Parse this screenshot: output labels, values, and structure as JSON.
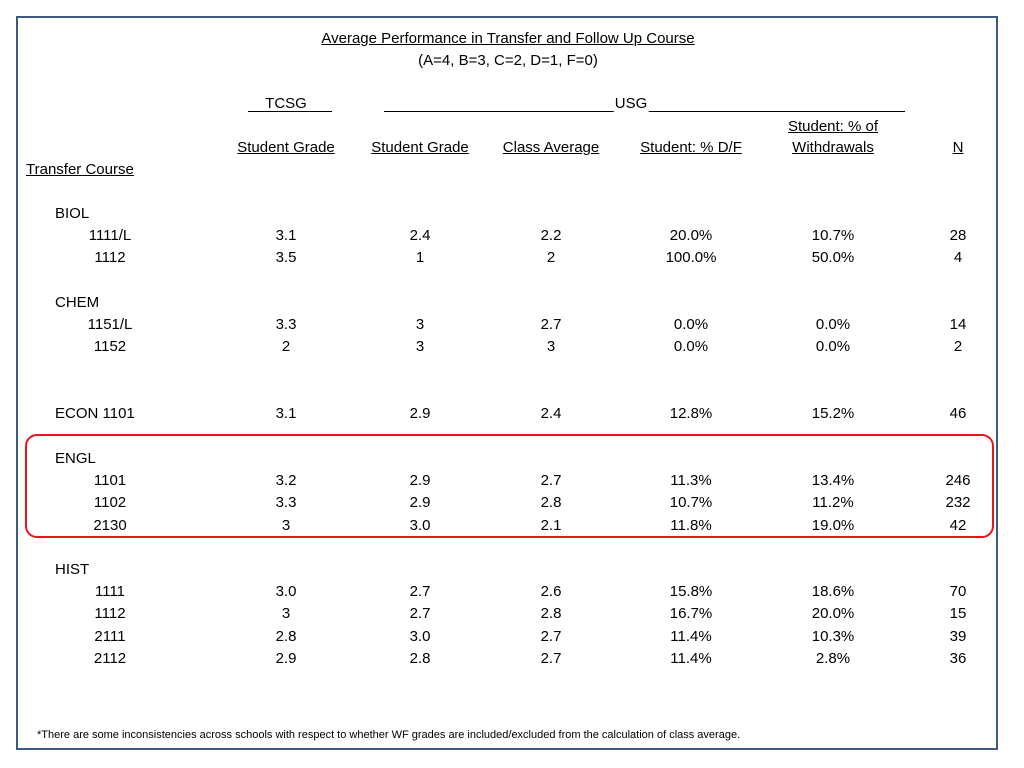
{
  "title": "Average Performance in Transfer and Follow Up Course",
  "subtitle": "(A=4, B=3, C=2, D=1, F=0)",
  "groups": {
    "tcsg": "TCSG",
    "usg": "USG"
  },
  "headers": {
    "tcsg_student_grade": "Student Grade",
    "usg_student_grade": "Student Grade",
    "class_average": "Class Average",
    "pct_df": "Student: % D/F",
    "pct_withdrawals_line1": "Student: % of",
    "pct_withdrawals_line2": "Withdrawals",
    "n": "N",
    "transfer_course": "Transfer Course"
  },
  "sections": [
    {
      "name": "BIOL",
      "rows": [
        {
          "course": "1111/L",
          "tcsg": "3.1",
          "usg": "2.4",
          "avg": "2.2",
          "df": "20.0%",
          "wd": "10.7%",
          "n": "28"
        },
        {
          "course": "1112",
          "tcsg": "3.5",
          "usg": "1",
          "avg": "2",
          "df": "100.0%",
          "wd": "50.0%",
          "n": "4"
        }
      ]
    },
    {
      "name": "CHEM",
      "rows": [
        {
          "course": "1151/L",
          "tcsg": "3.3",
          "usg": "3",
          "avg": "2.7",
          "df": "0.0%",
          "wd": "0.0%",
          "n": "14"
        },
        {
          "course": "1152",
          "tcsg": "2",
          "usg": "3",
          "avg": "3",
          "df": "0.0%",
          "wd": "0.0%",
          "n": "2"
        }
      ]
    },
    {
      "name": "",
      "rows": [
        {
          "course": "ECON 1101",
          "tcsg": "3.1",
          "usg": "2.9",
          "avg": "2.4",
          "df": "12.8%",
          "wd": "15.2%",
          "n": "46"
        }
      ]
    },
    {
      "name": "ENGL",
      "highlighted": true,
      "rows": [
        {
          "course": "1101",
          "tcsg": "3.2",
          "usg": "2.9",
          "avg": "2.7",
          "df": "11.3%",
          "wd": "13.4%",
          "n": "246"
        },
        {
          "course": "1102",
          "tcsg": "3.3",
          "usg": "2.9",
          "avg": "2.8",
          "df": "10.7%",
          "wd": "11.2%",
          "n": "232"
        },
        {
          "course": "2130",
          "tcsg": "3",
          "usg": "3.0",
          "avg": "2.1",
          "df": "11.8%",
          "wd": "19.0%",
          "n": "42"
        }
      ]
    },
    {
      "name": "HIST",
      "rows": [
        {
          "course": "1111",
          "tcsg": "3.0",
          "usg": "2.7",
          "avg": "2.6",
          "df": "15.8%",
          "wd": "18.6%",
          "n": "70"
        },
        {
          "course": "1112",
          "tcsg": "3",
          "usg": "2.7",
          "avg": "2.8",
          "df": "16.7%",
          "wd": "20.0%",
          "n": "15"
        },
        {
          "course": "2111",
          "tcsg": "2.8",
          "usg": "3.0",
          "avg": "2.7",
          "df": "11.4%",
          "wd": "10.3%",
          "n": "39"
        },
        {
          "course": "2112",
          "tcsg": "2.9",
          "usg": "2.8",
          "avg": "2.7",
          "df": "11.4%",
          "wd": "2.8%",
          "n": "36"
        }
      ]
    }
  ],
  "footnote": "*There are some inconsistencies across schools with respect to whether WF grades are included/excluded from the calculation of class average.",
  "colors": {
    "frame": "#3d5a80",
    "highlight": "#e8151d"
  }
}
